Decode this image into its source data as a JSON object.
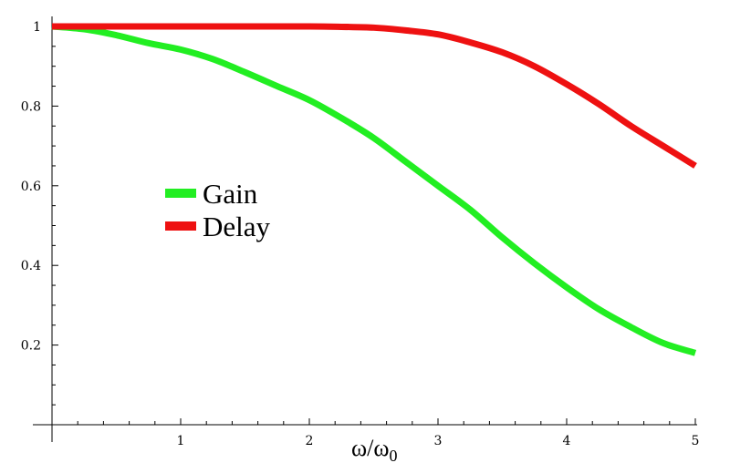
{
  "chart_data": {
    "type": "line",
    "title": "",
    "xlabel": "ω/ω",
    "xlabel_subscript": "0",
    "ylabel": "",
    "xlim": [
      0,
      5
    ],
    "ylim": [
      0,
      1.02
    ],
    "x_ticks": [
      1,
      2,
      3,
      4,
      5
    ],
    "x_tick_labels": [
      "1",
      "2",
      "3",
      "4",
      "5"
    ],
    "y_ticks": [
      0.2,
      0.4,
      0.6,
      0.8,
      1
    ],
    "y_tick_labels": [
      "0.2",
      "0.4",
      "0.6",
      "0.8",
      "1"
    ],
    "grid": false,
    "legend_position": "center-left",
    "series": [
      {
        "name": "Gain",
        "color": "#22ee22",
        "x": [
          0,
          0.25,
          0.5,
          0.75,
          1,
          1.25,
          1.5,
          1.75,
          2,
          2.25,
          2.5,
          2.75,
          3,
          3.25,
          3.5,
          3.75,
          4,
          4.25,
          4.5,
          4.75,
          5
        ],
        "y": [
          1,
          0.993,
          0.978,
          0.958,
          0.942,
          0.918,
          0.885,
          0.85,
          0.815,
          0.77,
          0.72,
          0.66,
          0.6,
          0.54,
          0.47,
          0.405,
          0.345,
          0.29,
          0.245,
          0.205,
          0.18
        ]
      },
      {
        "name": "Delay",
        "color": "#ee1111",
        "x": [
          0,
          0.5,
          1,
          1.5,
          2,
          2.25,
          2.5,
          2.75,
          3,
          3.25,
          3.5,
          3.75,
          4,
          4.25,
          4.5,
          4.75,
          5
        ],
        "y": [
          1,
          1,
          1,
          1,
          1,
          0.999,
          0.997,
          0.99,
          0.98,
          0.96,
          0.935,
          0.9,
          0.855,
          0.805,
          0.75,
          0.7,
          0.65
        ]
      }
    ]
  }
}
